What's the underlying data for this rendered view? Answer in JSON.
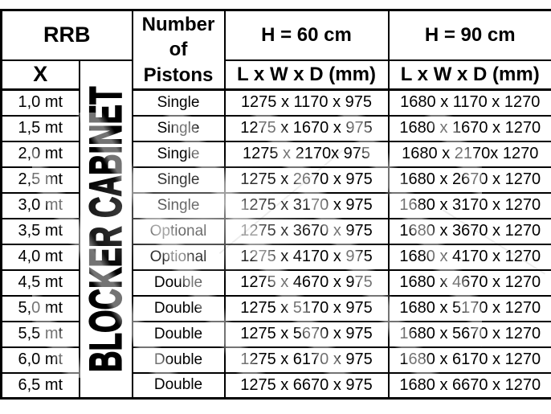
{
  "page": {
    "background": "#ffffff",
    "line_color": "#000000",
    "text_color": "#000000"
  },
  "table": {
    "header": {
      "rrb": "RRB",
      "x": "X",
      "pistons": "Number of Pistons",
      "h60": "H = 60 cm",
      "h90": "H = 90 cm",
      "dims60": "L x W x D (mm)",
      "dims90": "L x W x D (mm)"
    },
    "blocker_label": "BLOCKER CABINET",
    "rows": [
      {
        "x": "1,0 mt",
        "pistons": "Single",
        "h60": "1275 x 1170 x 975",
        "h90": "1680 x 1170 x 1270"
      },
      {
        "x": "1,5 mt",
        "pistons": "Single",
        "h60": "1275 x 1670 x 975",
        "h90": "1680 x 1670 x 1270"
      },
      {
        "x": "2,0 mt",
        "pistons": "Single",
        "h60": "1275 x 2170x 975",
        "h90": "1680 x 2170x 1270"
      },
      {
        "x": "2,5 mt",
        "pistons": "Single",
        "h60": "1275 x 2670 x 975",
        "h90": "1680 x 2670 x 1270"
      },
      {
        "x": "3,0 mt",
        "pistons": "Single",
        "h60": "1275 x 3170 x 975",
        "h90": "1680 x 3170 x 1270"
      },
      {
        "x": "3,5 mt",
        "pistons": "Optional",
        "h60": "1275 x 3670 x 975",
        "h90": "1680 x 3670 x 1270"
      },
      {
        "x": "4,0 mt",
        "pistons": "Optional",
        "h60": "1275 x 4170 x 975",
        "h90": "1680 x 4170 x 1270"
      },
      {
        "x": "4,5 mt",
        "pistons": "Double",
        "h60": "1275 x 4670 x 975",
        "h90": "1680 x 4670 x 1270"
      },
      {
        "x": "5,0 mt",
        "pistons": "Double",
        "h60": "1275 x 5170 x 975",
        "h90": "1680 x 5170 x 1270"
      },
      {
        "x": "5,5 mt",
        "pistons": "Double",
        "h60": "1275 x 5670 x 975",
        "h90": "1680 x 5670 x 1270"
      },
      {
        "x": "6,0 mt",
        "pistons": "Double",
        "h60": "1275 x 6170 x 975",
        "h90": "1680 x 6170 x 1270"
      },
      {
        "x": "6,5 mt",
        "pistons": "Double",
        "h60": "1275 x 6670 x 975",
        "h90": "1680 x 6670 x 1270"
      }
    ]
  }
}
